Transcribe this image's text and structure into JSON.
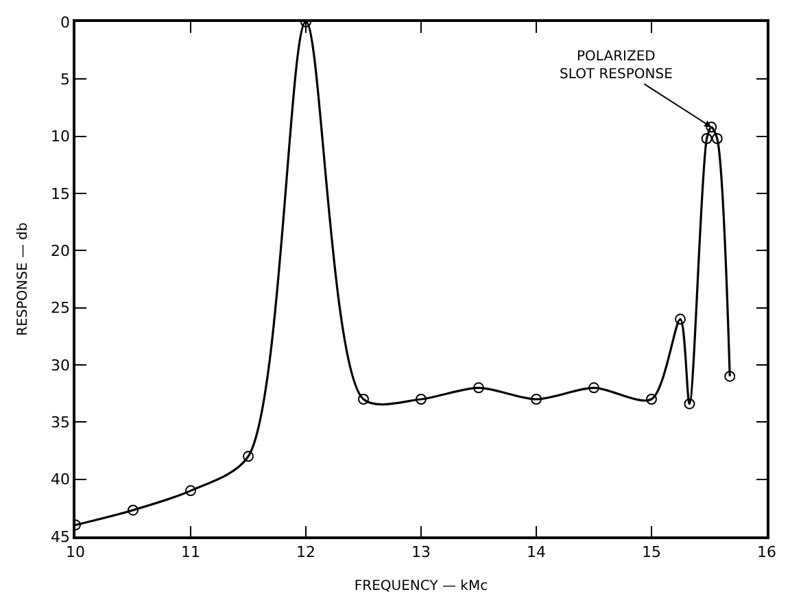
{
  "chart_data": {
    "type": "line",
    "xlabel": "FREQUENCY — kMc",
    "ylabel": "RESPONSE — db",
    "x": [
      10,
      10.5,
      11,
      11.5,
      12,
      12.5,
      13,
      13.5,
      14,
      14.5,
      15,
      15.25,
      15.33,
      15.48,
      15.52,
      15.57,
      15.68
    ],
    "series": [
      {
        "color": "#000000",
        "values": [
          44,
          42.7,
          41,
          38,
          0,
          33,
          33,
          32,
          33,
          32,
          33,
          26,
          33.4,
          10.2,
          9.2,
          10.2,
          31
        ]
      }
    ],
    "xlim": [
      10,
      16
    ],
    "xticks": [
      10,
      11,
      12,
      13,
      14,
      15,
      16
    ],
    "ylim": [
      45,
      0
    ],
    "yticks": [
      0,
      5,
      10,
      15,
      20,
      25,
      30,
      35,
      40,
      45
    ],
    "marker": "circle",
    "line_style": "solid",
    "annotations": [
      {
        "text": "POLARIZED\nSLOT RESPONSE",
        "x": 15.52,
        "y": 9.2
      }
    ]
  }
}
